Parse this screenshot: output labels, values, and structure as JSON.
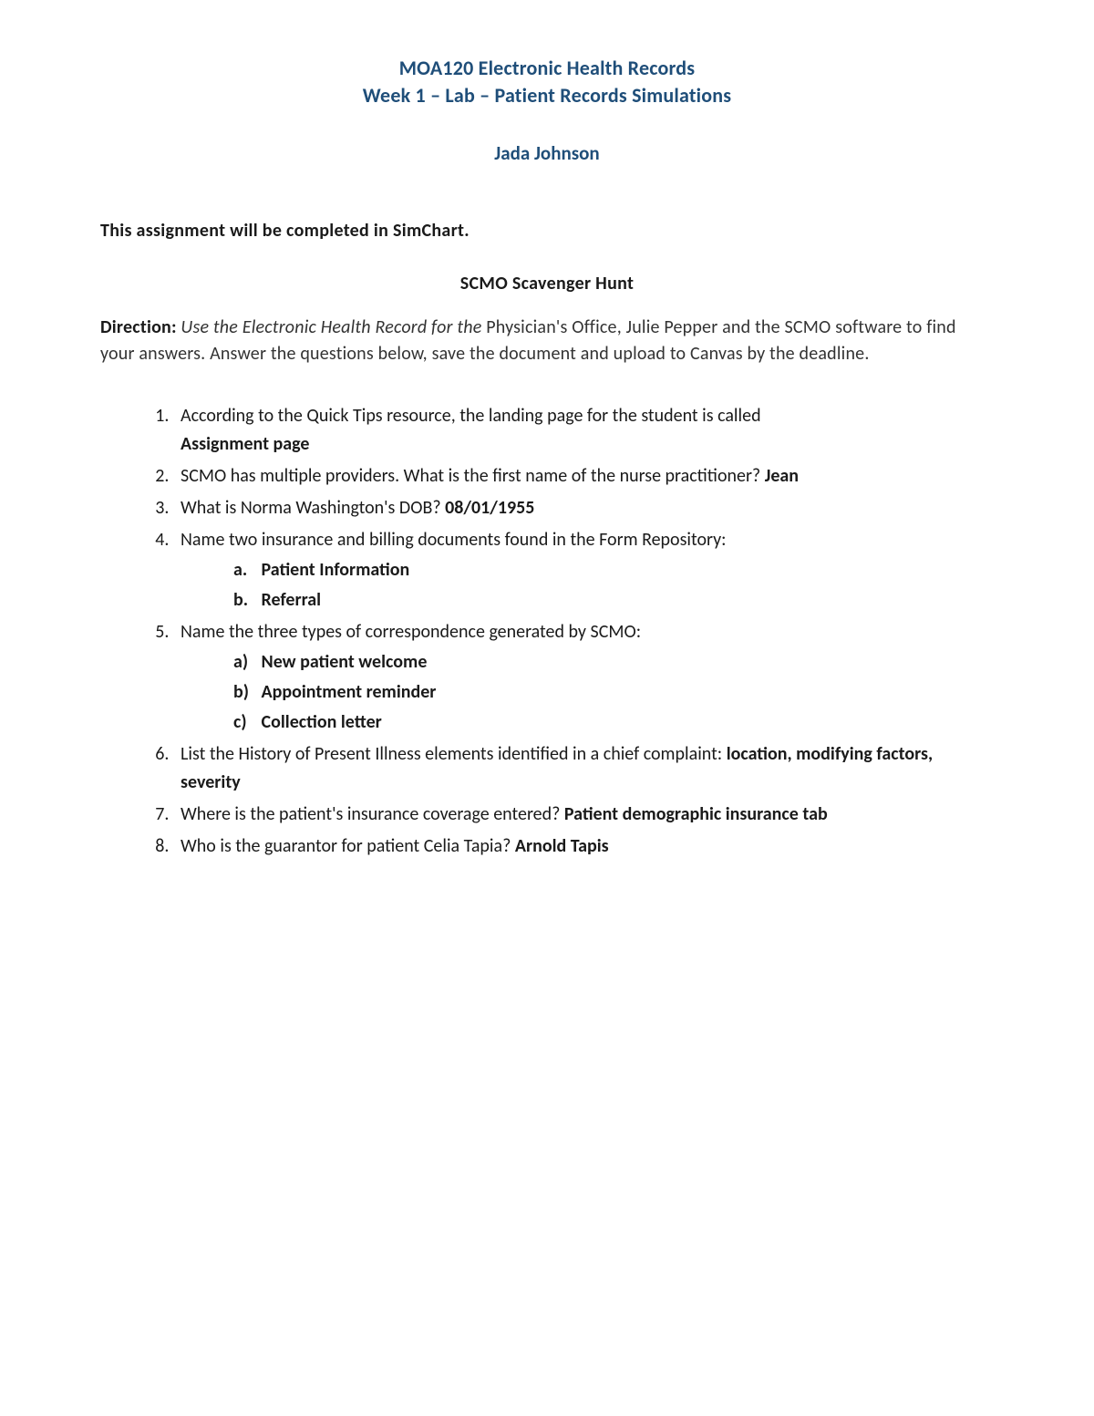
{
  "colors": {
    "heading": "#1f4e79",
    "body": "#1a1a1a",
    "muted": "#333333",
    "background": "#ffffff"
  },
  "typography": {
    "heading_fontsize": 22,
    "author_fontsize": 21,
    "body_fontsize": 20,
    "font_family": "Calibri"
  },
  "header": {
    "line1": "MOA120 Electronic Health Records",
    "line2": "Week 1 – Lab – Patient Records Simulations",
    "author": "Jada Johnson"
  },
  "intro": "This assignment will be completed in SimChart.",
  "subheading": "SCMO Scavenger Hunt",
  "direction": {
    "label": "Direction:",
    "italic": " Use the Electronic Health Record for the ",
    "rest": "Physician's Office, Julie Pepper and the SCMO software to find your answers. Answer the questions below, save the document and upload to Canvas by the deadline."
  },
  "items": {
    "q1_text": "According to the Quick Tips resource, the landing page for the student is called",
    "q1_answer": "Assignment page",
    "q2_text": "SCMO has multiple providers. What is the first name of the nurse practitioner? ",
    "q2_answer": "Jean",
    "q3_text": "What is Norma Washington's DOB? ",
    "q3_answer": "08/01/1955",
    "q4_text": "Name two insurance and billing documents found in the Form Repository:",
    "q4_a_marker": "a.",
    "q4_a": "Patient Information",
    "q4_b_marker": "b.",
    "q4_b": "Referral",
    "q5_text": "Name the three types of correspondence generated by SCMO:",
    "q5_a_marker": "a)",
    "q5_a": "New patient welcome",
    "q5_b_marker": "b)",
    "q5_b": "Appointment reminder",
    "q5_c_marker": "c)",
    "q5_c": "Collection letter",
    "q6_text": "List the History of Present Illness elements identified in a chief complaint: ",
    "q6_answer": "location, modifying factors, severity",
    "q7_text": "Where is the patient's insurance coverage entered? ",
    "q7_answer": "Patient demographic insurance tab",
    "q8_text": "Who is the guarantor for patient Celia Tapia? ",
    "q8_answer": "Arnold Tapis"
  }
}
